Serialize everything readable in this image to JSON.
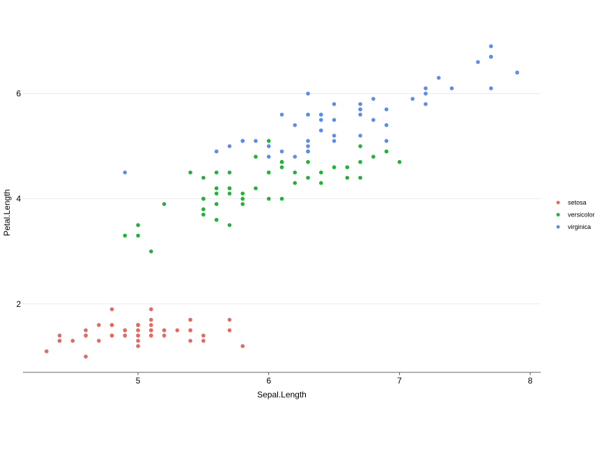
{
  "chart_data": {
    "type": "scatter",
    "title": "",
    "xlabel": "Sepal.Length",
    "ylabel": "Petal.Length",
    "xlim": [
      4.12,
      8.08
    ],
    "ylim": [
      0.7,
      7.25
    ],
    "x_ticks": [
      5,
      6,
      7,
      8
    ],
    "y_ticks": [
      2,
      4,
      6
    ],
    "x_tick_labels": [
      "5",
      "6",
      "7",
      "8"
    ],
    "y_tick_labels": [
      "2",
      "4",
      "6"
    ],
    "grid": "horizontal major lines",
    "legend_position": "right",
    "series": [
      {
        "name": "setosa",
        "color": "#E8685E",
        "points": [
          [
            5.1,
            1.4
          ],
          [
            4.9,
            1.4
          ],
          [
            4.7,
            1.3
          ],
          [
            4.6,
            1.5
          ],
          [
            5.0,
            1.4
          ],
          [
            5.4,
            1.7
          ],
          [
            4.6,
            1.4
          ],
          [
            5.0,
            1.5
          ],
          [
            4.4,
            1.4
          ],
          [
            4.9,
            1.5
          ],
          [
            5.4,
            1.5
          ],
          [
            4.8,
            1.6
          ],
          [
            4.8,
            1.4
          ],
          [
            4.3,
            1.1
          ],
          [
            5.8,
            1.2
          ],
          [
            5.7,
            1.5
          ],
          [
            5.4,
            1.3
          ],
          [
            5.1,
            1.4
          ],
          [
            5.7,
            1.7
          ],
          [
            5.1,
            1.5
          ],
          [
            5.4,
            1.7
          ],
          [
            5.1,
            1.5
          ],
          [
            4.6,
            1.0
          ],
          [
            5.1,
            1.7
          ],
          [
            4.8,
            1.9
          ],
          [
            5.0,
            1.6
          ],
          [
            5.0,
            1.6
          ],
          [
            5.2,
            1.5
          ],
          [
            5.2,
            1.4
          ],
          [
            4.7,
            1.6
          ],
          [
            4.8,
            1.6
          ],
          [
            5.4,
            1.5
          ],
          [
            5.2,
            1.5
          ],
          [
            5.5,
            1.4
          ],
          [
            4.9,
            1.5
          ],
          [
            5.0,
            1.2
          ],
          [
            5.5,
            1.3
          ],
          [
            4.9,
            1.4
          ],
          [
            4.4,
            1.3
          ],
          [
            5.1,
            1.5
          ],
          [
            5.0,
            1.3
          ],
          [
            4.5,
            1.3
          ],
          [
            4.4,
            1.3
          ],
          [
            5.0,
            1.6
          ],
          [
            5.1,
            1.9
          ],
          [
            4.8,
            1.4
          ],
          [
            5.1,
            1.6
          ],
          [
            4.6,
            1.4
          ],
          [
            5.3,
            1.5
          ],
          [
            5.0,
            1.4
          ]
        ]
      },
      {
        "name": "versicolor",
        "color": "#1FB534",
        "points": [
          [
            7.0,
            4.7
          ],
          [
            6.4,
            4.5
          ],
          [
            6.9,
            4.9
          ],
          [
            5.5,
            4.0
          ],
          [
            6.5,
            4.6
          ],
          [
            5.7,
            4.5
          ],
          [
            6.3,
            4.7
          ],
          [
            4.9,
            3.3
          ],
          [
            6.6,
            4.6
          ],
          [
            5.2,
            3.9
          ],
          [
            5.0,
            3.5
          ],
          [
            5.9,
            4.2
          ],
          [
            6.0,
            4.0
          ],
          [
            6.1,
            4.7
          ],
          [
            5.6,
            3.6
          ],
          [
            6.7,
            4.4
          ],
          [
            5.6,
            4.5
          ],
          [
            5.8,
            4.1
          ],
          [
            6.2,
            4.5
          ],
          [
            5.6,
            3.9
          ],
          [
            5.9,
            4.8
          ],
          [
            6.1,
            4.0
          ],
          [
            6.3,
            4.9
          ],
          [
            6.1,
            4.7
          ],
          [
            6.4,
            4.3
          ],
          [
            6.6,
            4.4
          ],
          [
            6.8,
            4.8
          ],
          [
            6.7,
            5.0
          ],
          [
            6.0,
            4.5
          ],
          [
            5.7,
            3.5
          ],
          [
            5.5,
            3.8
          ],
          [
            5.5,
            3.7
          ],
          [
            5.8,
            3.9
          ],
          [
            6.0,
            5.1
          ],
          [
            5.4,
            4.5
          ],
          [
            6.0,
            4.5
          ],
          [
            6.7,
            4.7
          ],
          [
            6.3,
            4.4
          ],
          [
            5.6,
            4.1
          ],
          [
            5.5,
            4.0
          ],
          [
            5.5,
            4.4
          ],
          [
            6.1,
            4.6
          ],
          [
            5.8,
            4.0
          ],
          [
            5.0,
            3.3
          ],
          [
            5.6,
            4.2
          ],
          [
            5.7,
            4.2
          ],
          [
            5.7,
            4.2
          ],
          [
            6.2,
            4.3
          ],
          [
            5.1,
            3.0
          ],
          [
            5.7,
            4.1
          ]
        ]
      },
      {
        "name": "virginica",
        "color": "#5A8DEE",
        "points": [
          [
            6.3,
            6.0
          ],
          [
            5.8,
            5.1
          ],
          [
            7.1,
            5.9
          ],
          [
            6.3,
            5.6
          ],
          [
            6.5,
            5.8
          ],
          [
            7.6,
            6.6
          ],
          [
            4.9,
            4.5
          ],
          [
            7.3,
            6.3
          ],
          [
            6.7,
            5.8
          ],
          [
            7.2,
            6.1
          ],
          [
            6.5,
            5.1
          ],
          [
            6.4,
            5.3
          ],
          [
            6.8,
            5.5
          ],
          [
            5.7,
            5.0
          ],
          [
            5.8,
            5.1
          ],
          [
            6.4,
            5.3
          ],
          [
            6.5,
            5.5
          ],
          [
            7.7,
            6.7
          ],
          [
            7.7,
            6.9
          ],
          [
            6.0,
            5.0
          ],
          [
            6.9,
            5.7
          ],
          [
            5.6,
            4.9
          ],
          [
            7.7,
            6.7
          ],
          [
            6.3,
            4.9
          ],
          [
            6.7,
            5.7
          ],
          [
            7.2,
            6.0
          ],
          [
            6.2,
            4.8
          ],
          [
            6.1,
            4.9
          ],
          [
            6.4,
            5.6
          ],
          [
            7.2,
            5.8
          ],
          [
            7.4,
            6.1
          ],
          [
            7.9,
            6.4
          ],
          [
            6.4,
            5.6
          ],
          [
            6.3,
            5.1
          ],
          [
            6.1,
            5.6
          ],
          [
            7.7,
            6.1
          ],
          [
            6.3,
            5.6
          ],
          [
            6.4,
            5.5
          ],
          [
            6.0,
            4.8
          ],
          [
            6.9,
            5.4
          ],
          [
            6.7,
            5.6
          ],
          [
            6.9,
            5.1
          ],
          [
            5.8,
            5.1
          ],
          [
            6.8,
            5.9
          ],
          [
            6.7,
            5.7
          ],
          [
            6.7,
            5.2
          ],
          [
            6.3,
            5.0
          ],
          [
            6.5,
            5.2
          ],
          [
            6.2,
            5.4
          ],
          [
            5.9,
            5.1
          ]
        ]
      }
    ]
  }
}
